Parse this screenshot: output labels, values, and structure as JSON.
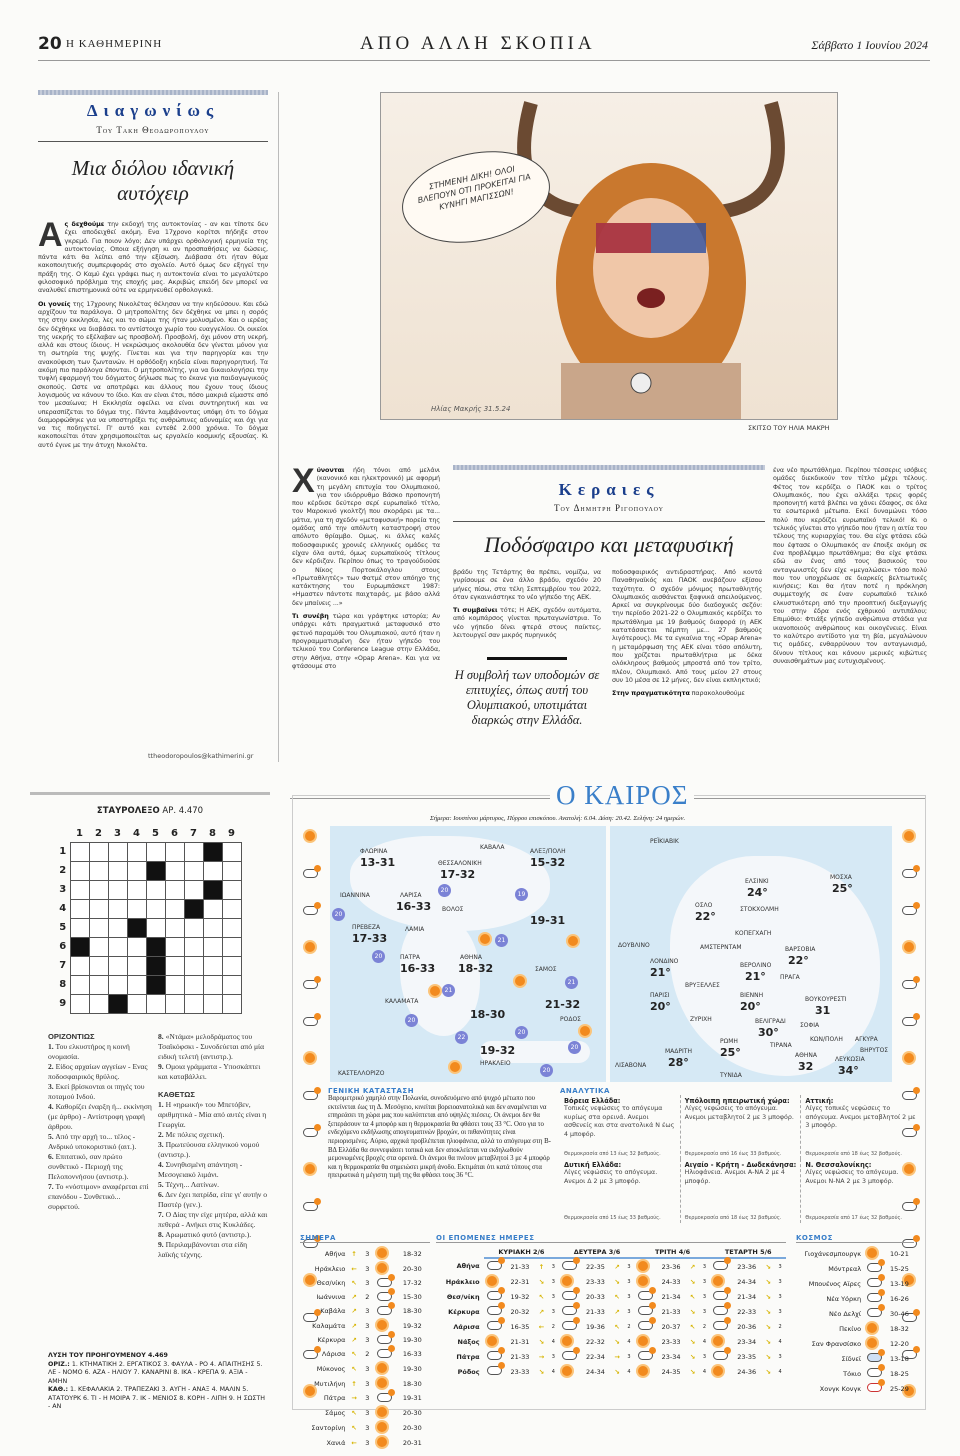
{
  "header": {
    "page": "20",
    "paper": "Η ΚΑΘΗΜΕΡΙΝΗ",
    "section": "ΑΠΟ ΑΛΛΗ ΣΚΟΠΙΑ",
    "date": "Σάββατο 1 Ιουνίου 2024"
  },
  "column1": {
    "kicker": "Διαγωνίως",
    "byline": "Του Τακη Θεοδωροπουλου",
    "headline": "Μια διόλου ιδανική αυτόχειρ",
    "dropcap": "Α",
    "lead_bold": "ς δεχθούμε",
    "p1": " την εκδοχή της αυτοκτονίας - αν και τίποτε δεν έχει αποδειχθεί ακόμη. Ενα 17χρονο κορίτσι πήδηξε στον γκρεμό. Για ποιον λόγο; Δεν υπάρχει ορθολογική ερμηνεία της αυτοκτονίας. Οποια εξήγηση κι αν προσπαθήσεις να δώσεις, πάντα κάτι θα λείπει από την εξίσωση. Διάβασα ότι ήταν θύμα κακοποιητικής συμπεριφοράς στο σχολείο. Αυτό όμως δεν εξηγεί την πράξη της. Ο Καμύ έχει γράψει πως η αυτοκτονία είναι το μεγαλύτερο φιλοσοφικό πρόβλημα της εποχής μας. Ακριβώς επειδή δεν μπορεί να αναλυθεί επιστημονικά ούτε να ερμηνευθεί ορθολογικά.",
    "p2_bold": "Οι γονείς",
    "p2": " της 17χρονης Νικολέτας θέλησαν να την κηδεύσουν. Και εδώ αρχίζουν τα παράλογα. Ο μητροπολίτης δεν δέχθηκε να μπει η σορός της στην εκκλησία, λες και το σώμα της ήταν μολυσμένο. Και ο ιερέας δεν δέχθηκε να διαβάσει το αντίστοιχο χωρίο του ευαγγελίου. Οι οικείοι της νεκρής το εξέλαβαν ως προσβολή. Προσβολή, όχι μόνον στη νεκρή, αλλά και στους ίδιους. Η νεκρώσιμος ακολουθία δεν γίνεται μόνον για τη σωτηρία της ψυχής. Γίνεται και για την παρηγορία και την ανακούφιση των ζωντανών. Η ορθόδοξη κηδεία είναι παρηγορητική. Τα ακόμη πιο παράλογα έπονται. Ο μητροπολίτης, για να δικαιολογήσει την τυφλή εφαρμογή του δόγματος δήλωσε πως το έκανε για παιδαγωγικούς σκοπούς. Ωστε να αποτρέψει και άλλους που έχουν τους ίδιους λογισμούς να κάνουν το ίδιο. Και αν είναι έτσι, πόσο μακριά είμαστε από τον μεσαίωνα; Η Εκκλησία οφείλει να είναι συντηρητική και να υπερασπίζεται το δόγμα της. Πάντα λαμβάνοντας υπόψη ότι το δόγμα διαμορφώθηκε για να υποστηρίξει τις ανθρώπινες αδυναμίες και όχι για να τις ποδηγετεί. Π' αυτό και εντεθέ 2.000 χρόνια. Το δόγμα κακοποιείται όταν χρησιμοποιείται ως εργαλείο κοσμικής εξουσίας. Κι αυτό έγινε με την άτυχη Νικολέτα.",
    "email": "ttheodoropoulos@kathimerini.gr"
  },
  "cartoon": {
    "speech": "ΣΤΗΜΕΝΗ ΔΙΚΗ! ΟΛΟΙ ΒΛΕΠΟΥΝ ΟΤΙ ΠΡΟΚΕΙΤΑΙ ΓΙΑ ΚΥΝΗΓΙ ΜΑΓΙΣΣΩΝ!",
    "signature": "Ηλίας Μακρής 31.5.24",
    "caption": "ΣΚΙΤΣΟ ΤΟΥ ΗΛΙΑ ΜΑΚΡΗ"
  },
  "column2": {
    "kicker": "Κεραιες",
    "byline": "Του Δημητρη Ριγοπουλου",
    "headline": "Ποδόσφαιρο και μεταφυσική",
    "dropcap": "Χ",
    "lead_bold": "ύνονται",
    "p1": " ήδη τόνοι από μελάνι (κανονικό και ηλεκτρονικό) με αφορμή τη μεγάλη επιτυχία του Ολυμπιακού, για τον ιδιόρρυθμο Βάσκο προπονητή που κέρδισε δεύτερο σερί ευρωπαϊκό τίτλο, τον Μαροκινό γκολτζή που σκοράρει με τα... μάτια, για τη σχεδόν «μεταφυσική» πορεία της ομάδας από την απόλυτη καταστροφή στον απόλυτο θρίαμβο. Ομως, κι άλλες καλές ποδοσφαιρικές χρονιές ελληνικές ομάδες τα είχαν όλα αυτά, όμως ευρωπαϊκούς τίτλους δεν κέρδιζαν. Περίπου όπως το τραγούδιούσε ο Νίκος Πορτοκάλογλου στους «Πρωταθλητές» των Φατμέ στον απόηχο της κατάκτησης του Ευρωμπάσκετ 1987: «Ημαστεν πάντοτε παιχταράς, με βάσο αλλά δεν μπαίνεις ...»",
    "p2_bold": "Τι συνέβη",
    "p2": " τώρα και γράφτηκε ιστορία; Αν υπάρχει κάτι πραγματικά μεταφυσικό στο φετινό παραμύθι του Ολυμπιακού, αυτό ήταν η προγραμματισμένη δεν ήταν γήπεδο του τελικού του Conference League στην Ελλάδα, στην Αθήνα, στην «Opap Arena». Και για να φτάσουμε στο",
    "p3": "βράδυ της Τετάρτης θα πρέπει, νομίζω, να γυρίσουμε σε ένα άλλο βράδυ, σχεδόν 20 μήνες πίσω, στα τέλη Σεπτεμβρίου του 2022, όταν εγκαινιάστηκε το νέο γήπεδο της ΑΕΚ.",
    "p4_bold": "Τι συμβαίνει",
    "p4": " τότε; Η ΑΕΚ, σχεδόν αυτόματα, από κομπάρσος γίνεται πρωταγωνίστρια. Το νέο γήπεδο δίνει φτερά στους παίκτες, λειτουργεί σαν μικρός πυρηνικός",
    "quote": "Η συμβολή των υποδομών σε επιτυχίες, όπως αυτή του Ολυμπιακού, υποτιμάται διαρκώς στην Ελλάδα.",
    "p5": "ποδοσφαιρικός αντιδραστήρας. Από κοντά Παναθηναϊκός και ΠΑΟΚ ανεβάζουν εξίσου ταχύτητα. Ο σχεδόν μόνιμος πρωταθλητής Ολυμπιακός αισθάνεται ξαφνικά απειλούμενος. Αρκεί να συγκρίνουμε δύο διαδοχικές σεζόν: την περίοδο 2021-22 ο Ολυμπιακός κερδίζει το πρωτάθλημα με 19 βαθμούς διαφορά (η ΑΕΚ κατατάσσεται πέμπτη με... 27 βαθμούς λιγότερους). Με τα εγκαίνια της «Opap Arena» η μεταμόρφωση της ΑΕΚ είναι τόσο απόλυτη, που χρίζεται πρωταθλήτρια με δέκα ολόκληρους βαθμούς μπροστά από τον τρίτο, πλέον, Ολυμπιακό. Από τους μείον 27 στους συν 10 μέσα σε 12 μήνες, δεν είναι εκπληκτικό;",
    "p6_bold": "Στην πραγματικότητα",
    "p6": " παρακολουθούμε",
    "p7": "ένα νέο πρωτάθλημα. Περίπου τέσσερις ισόβιες ομάδες διεκδικούν τον τίτλο μέχρι τέλους. Φέτος τον κερδίζει ο ΠΑΟΚ και ο τρίτος Ολυμπιακός, που έχει αλλάξει τρεις φορές προπονητή κατά βλέπει να χάνει έδαφος, σε όλα τα εσωτερικά μέτωπα. Εκεί δυναμώνει τόσο πολύ που κερδίζει ευρωπαϊκό τελικό! Κι ο τελικός γίνεται στο γήπεδο που ήταν η αιτία του τέλους της κυριαρχίας του. Θα είχε φτάσει εδώ που έφτασε ο Ολυμπιακός αν έποιξε ακόμη σε ένα προβλέψιμο πρωτάθλημα; Θα είχε φτάσει εδώ αν ένας από τους βασικούς του ανταγωνιστές δεν είχε «μεγαλώσει» τόσο πολύ που τον υποχρέωσε σε διαρκείς βελτιωτικές κινήσεις; Και θα ήταν ποτέ η πρόκληση συμμετοχής σε έναν ευρωπαϊκό τελικό ελκυστικότερη από την προοπτική διεξαγωγής του στην έδρα ενός εχθρικού αντιπάλου; Επιμύθιο: Φτιάξε γήπεδο ανθρώπινα στάδια για ικανοποιούς ανθρώπους και οικογένειες. Είναι το καλύτερο αντίδοτο για τη βία, μεγαλώνουν τις ομάδες, ενθαρρύνουν τον ανταγωνισμό, δίνουν τίτλους και κάνουν μερικές κιβώτιες συναισθημάτων μας ευτυχισμένους."
  },
  "crossword": {
    "title_bold": "ΣΤΑΥΡΟΛΕΞΟ",
    "title": "ΑΡ. 4.470",
    "cols": [
      "1",
      "2",
      "3",
      "4",
      "5",
      "6",
      "7",
      "8",
      "9"
    ],
    "rows": [
      "1",
      "2",
      "3",
      "4",
      "5",
      "6",
      "7",
      "8",
      "9"
    ],
    "black_cells": [
      [
        1,
        8
      ],
      [
        2,
        5
      ],
      [
        3,
        8
      ],
      [
        4,
        7
      ],
      [
        5,
        4
      ],
      [
        6,
        1
      ],
      [
        6,
        5
      ],
      [
        7,
        5
      ],
      [
        8,
        5
      ],
      [
        9,
        3
      ]
    ],
    "across_title": "ΟΡΙΖΟΝΤΙΩΣ",
    "across": [
      {
        "n": "1.",
        "t": "Του ελκυστήρος η κοινή ονομασία."
      },
      {
        "n": "2.",
        "t": "Είδος αρχαίων αγγείων - Ενας ποδοσφαιρικός θρύλος."
      },
      {
        "n": "3.",
        "t": "Εκεί βρίσκονται οι πηγές του ποταμού Ινδού."
      },
      {
        "n": "4.",
        "t": "Καθορίζει έναρξη ή... εκκίνηση (με άρθρο) - Αντίστροφη γραφή άρθρου."
      },
      {
        "n": "5.",
        "t": "Από την αρχή το... τέλος - Ανδρικό υποκοριστικό (αιτ.)."
      },
      {
        "n": "6.",
        "t": "Επιτατικό, σαν πρώτο συνθετικό - Περιοχή της Πελοποννήσου (αντιστρ.)."
      },
      {
        "n": "7.",
        "t": "Το «νόστιμον» αναφέρεται επί επανόδου - Συνθετικό... συρφετού."
      },
      {
        "n": "8.",
        "t": "«Ντάμα» μελοδράματος του Τσαϊκόφσκι - Συνοδεύεται από μία ειδική τελετή (αντιστρ.)."
      },
      {
        "n": "9.",
        "t": "Ομοια γράμματα - Υποσκάπτει και καταβάλλει."
      }
    ],
    "down_title": "ΚΑΘΕΤΩΣ",
    "down": [
      {
        "n": "1.",
        "t": "Η «ηρωική» του Μπετόβεν, αριθμητικά - Μία από αυτές είναι η Γεωργία."
      },
      {
        "n": "2.",
        "t": "Με πόλεις σχετική."
      },
      {
        "n": "3.",
        "t": "Πρωτεύουσα ελληνικού νομού (αντιστρ.)."
      },
      {
        "n": "4.",
        "t": "Συνηθισμένη απάντηση - Μεσογειακό λιμάνι."
      },
      {
        "n": "5.",
        "t": "Τέχνη... Λατίνων."
      },
      {
        "n": "6.",
        "t": "Δεν έχει πατρίδα, είπε γι' αυτήν ο Παστέρ (γεν.)."
      },
      {
        "n": "7.",
        "t": "Ο Δίας την είχε μητέρα, αλλά και πεθερά - Ανήκει στις Κυκλάδες."
      },
      {
        "n": "8.",
        "t": "Αρωματικό φυτό (αντιστρ.)."
      },
      {
        "n": "9.",
        "t": "Περιλαμβάνονται στα είδη λαϊκής τέχνης."
      }
    ],
    "solution_title": "ΛΥΣΗ ΤΟΥ ΠΡΟΗΓΟΥΜΕΝΟΥ 4.469",
    "solution_across_label": "ΟΡΙΖ.:",
    "solution_across": "1. ΚΤΗΜΑΤΙΚΗ 2. ΕΡΓΑΤΙΚΟΣ 3. ΦΑΥΛΑ - ΡΟ 4. ΑΠΑΙΤΗΣΗΣ 5. ΛΕ - ΝΟΜΟ 6. ΑΖΑ - ΗΛΙΟΥ 7. ΚΑΝΑΡΙΝΙ 8. ΙΚΑ - ΚΡΕΠΑ 9. ΑΞΙΑ - ΑΜΗΝ",
    "solution_down_label": "ΚΑΘ.:",
    "solution_down": "1. ΚΕΦΑΛΑΚΙΑ 2. ΤΡΑΠΕΖΑΚΙ 3. ΑΥΓΗ - ΑΝΑΞ 4. ΜΑΛΙΝ 5. ΑΤΑΤΟΥΡΚ 6. ΤΙ - Η ΜΟΙΡΑ 7. ΙΚ - ΜΕΝΙΟΣ 8. ΚΟΡΗ - ΛΙΠΗ 9. Η ΣΩΣΤΗ - ΑΝ"
  },
  "weather": {
    "title": "Ο ΚΑΙΡΟΣ",
    "today_note": "Σήμερα: Ιουστίνου μάρτυρος, Πύρρου επισκόπου. Ανατολή: 6.04. Δύση: 20.42. Σελήνη: 24 ημερών.",
    "colors": {
      "accent": "#3a7fc9",
      "sun": "#f28a1e",
      "sea": "#d6e9f5"
    },
    "greece_map": {
      "cities": [
        "ΦΛΩΡΙΝΑ",
        "ΘΕΣΣΑΛΟΝΙΚΗ",
        "ΚΑΒΑΛΑ",
        "ΑΛΕΞ/ΠΟΛΗ",
        "ΙΩΑΝΝΙΝΑ",
        "ΛΑΡΙΣΑ",
        "ΒΟΛΟΣ",
        "ΠΡΕΒΕΖΑ",
        "ΛΑΜΙΑ",
        "ΠΑΤΡΑ",
        "ΑΘΗΝΑ",
        "ΣΑΜΟΣ",
        "ΚΑΛΑΜΑΤΑ",
        "ΡΟΔΟΣ",
        "ΗΡΑΚΛΕΙΟ",
        "ΚΑΣΤΕΛΛΟΡΙΖΟ"
      ],
      "temps": [
        "13-31",
        "17-32",
        "15-32",
        "16-33",
        "17-33",
        "19-31",
        "16-33",
        "18-32",
        "18-30",
        "21-32",
        "19-32"
      ],
      "sea_temps": [
        "20",
        "19",
        "20",
        "21",
        "20",
        "21",
        "21",
        "20",
        "20",
        "22",
        "20",
        "20"
      ]
    },
    "europe_map": {
      "cities": [
        "ΡΕΪΚΙΑΒΙΚ",
        "ΕΛΣΙΝΚΙ",
        "ΜΟΣΧΑ",
        "ΟΣΛΟ",
        "ΣΤΟΚΧΟΛΜΗ",
        "ΚΟΠΕΓΧΑΓΗ",
        "ΔΟΥΒΛΙΝΟ",
        "ΑΜΣΤΕΡΝΤΑΜ",
        "ΒΑΡΣΟΒΙΑ",
        "ΛΟΝΔΙΝΟ",
        "ΒΕΡΟΛΙΝΟ",
        "ΒΡΥΞΕΛΛΕΣ",
        "ΠΡΑΓΑ",
        "ΠΑΡΙΣΙ",
        "ΒΙΕΝΝΗ",
        "ΒΟΥΚΟΥΡΕΣΤΙ",
        "ΖΥΡΙΧΗ",
        "ΒΕΛΙΓΡΑΔΙ",
        "ΣΟΦΙΑ",
        "ΡΩΜΗ",
        "ΤΙΡΑΝΑ",
        "ΚΩΝ/ΠΟΛΗ",
        "ΑΓΚΥΡΑ",
        "ΜΑΔΡΙΤΗ",
        "ΛΙΣΑΒΟΝΑ",
        "ΑΘΗΝΑ",
        "ΛΕΥΚΩΣΙΑ",
        "ΒΗΡΥΤΟΣ",
        "ΤΥΝΙΔΑ"
      ],
      "temps": [
        "24°",
        "25°",
        "22°",
        "22°",
        "21°",
        "21°",
        "20°",
        "20°",
        "31",
        "30°",
        "25°",
        "28°",
        "32",
        "34°"
      ]
    },
    "general_title": "ΓΕΝΙΚΗ ΚΑΤΑΣΤΑΣΗ",
    "general_text": "Βαρομετρικό χαμηλό στην Πολωνία, συνοδευόμενο από ψυχρό μέτωπο που εκτείνεται έως τη Δ. Μεσόγειο, κινείται βορειοανατολικά και δεν αναμένεται να επηρεάσει τη χώρα μας που καλύπτεται από υψηλές πιέσεις. Οι άνεμοι δεν θα ξεπεράσουν τα 4 μποφόρ και η θερμοκρασία θα φθάσει τους 33 °C. Οσο για το ενδεχόμενο εκδήλωσης απογευματινών βροχών, οι πιθανότητες είναι περιορισμένες. Αύριο, αρχικά προβλέπεται ηλιοφάνεια, αλλά το απόγευμα στη Β-ΒΔ Ελλάδα θα συννεφιάσει τοπικά και δεν αποκλείεται να εκδηλωθούν μεμονωμένες βροχές στα ορεινά. Οι άνεμοι θα πνέουν μεταβλητοί 3 με 4 μποφόρ και η θερμοκρασία θα σημειώσει μικρή άνοδο. Εκτιμάται ότι κατά τόπους στα ηπειρωτικά η μέγιστη τιμή της θα φθάσει τους 36 °C.",
    "regional_title": "ΑΝΑΛΥΤΙΚΑ",
    "regions": [
      {
        "name": "Βόρεια Ελλάδα:",
        "text": "Τοπικές νεφώσεις το απόγευμα κυρίως στα ορεινά. Ανεμοι ασθενείς και στα ανατολικά Ν έως 4 μποφόρ.",
        "temp": "Θερμοκρασία από 13 έως 32 βαθμούς."
      },
      {
        "name": "Υπόλοιπη ηπειρωτική χώρα:",
        "text": "Λίγες νεφώσεις το απόγευμα. Ανεμοι μεταβλητοί 2 με 3 μποφόρ.",
        "temp": "Θερμοκρασία από 16 έως 33 βαθμούς."
      },
      {
        "name": "Αττική:",
        "text": "Λίγες τοπικές νεφώσεις το απόγευμα. Ανεμοι μεταβλητοί 2 με 3 μποφόρ.",
        "temp": "Θερμοκρασία από 18 έως 32 βαθμούς."
      },
      {
        "name": "Δυτική Ελλάδα:",
        "text": "Λίγες νεφώσεις το απόγευμα. Ανεμοι Δ 2 με 3 μποφόρ.",
        "temp": "Θερμοκρασία από 15 έως 33 βαθμούς."
      },
      {
        "name": "Αιγαίο - Κρήτη - Δωδεκάνησα:",
        "text": "Ηλιοφάνεια. Ανεμοι Α-ΝΑ 2 με 4 μποφόρ.",
        "temp": "Θερμοκρασία από 18 έως 32 βαθμούς."
      },
      {
        "name": "Ν. Θεσσαλονίκης:",
        "text": "Λίγες νεφώσεις το απόγευμα. Ανεμοι Ν-ΝΑ 2 με 3 μποφόρ.",
        "temp": "Θερμοκρασία από 17 έως 32 βαθμούς."
      }
    ],
    "today_title": "ΣΗΜΕΡΑ",
    "today": [
      {
        "city": "Αθήνα",
        "wind": "↑",
        "bf": "3",
        "icon": "sun",
        "t": "18-32"
      },
      {
        "city": "Ηράκλειο",
        "wind": "←",
        "bf": "3",
        "icon": "sun",
        "t": "20-30"
      },
      {
        "city": "Θεσ/νίκη",
        "wind": "↖",
        "bf": "3",
        "icon": "cloud",
        "t": "17-32"
      },
      {
        "city": "Ιωάννινα",
        "wind": "↗",
        "bf": "2",
        "icon": "cloud",
        "t": "15-30"
      },
      {
        "city": "Καβάλα",
        "wind": "↗",
        "bf": "3",
        "icon": "cloud",
        "t": "18-30"
      },
      {
        "city": "Καλαμάτα",
        "wind": "↗",
        "bf": "3",
        "icon": "sun",
        "t": "19-32"
      },
      {
        "city": "Κέρκυρα",
        "wind": "↗",
        "bf": "3",
        "icon": "cloud",
        "t": "19-30"
      },
      {
        "city": "Λάρισα",
        "wind": "↖",
        "bf": "2",
        "icon": "cloud",
        "t": "16-33"
      },
      {
        "city": "Μύκονος",
        "wind": "↖",
        "bf": "3",
        "icon": "sun",
        "t": "19-30"
      },
      {
        "city": "Μυτιλήνη",
        "wind": "↑",
        "bf": "3",
        "icon": "sun",
        "t": "18-30"
      },
      {
        "city": "Πάτρα",
        "wind": "→",
        "bf": "3",
        "icon": "cloud",
        "t": "19-31"
      },
      {
        "city": "Σάμος",
        "wind": "↖",
        "bf": "3",
        "icon": "sun",
        "t": "20-30"
      },
      {
        "city": "Σαντορίνη",
        "wind": "↖",
        "bf": "3",
        "icon": "sun",
        "t": "20-30"
      },
      {
        "city": "Χανιά",
        "wind": "←",
        "bf": "3",
        "icon": "sun",
        "t": "20-31"
      }
    ],
    "next_title": "ΟΙ ΕΠΟΜΕΝΕΣ ΗΜΕΡΕΣ",
    "next_days": [
      "ΚΥΡΙΑΚΗ 2/6",
      "ΔΕΥΤΕΡΑ 3/6",
      "ΤΡΙΤΗ 4/6",
      "ΤΕΤΑΡΤΗ 5/6"
    ],
    "next": [
      {
        "city": "Αθήνα",
        "d": [
          [
            "cloud",
            "21-33",
            "↑",
            "3"
          ],
          [
            "cloud",
            "22-35",
            "↗",
            "3"
          ],
          [
            "sun",
            "23-36",
            "↗",
            "3"
          ],
          [
            "cloud",
            "23-36",
            "↘",
            "3"
          ]
        ]
      },
      {
        "city": "Ηράκλειο",
        "d": [
          [
            "sun",
            "22-31",
            "↘",
            "3"
          ],
          [
            "sun",
            "23-33",
            "↘",
            "3"
          ],
          [
            "sun",
            "24-33",
            "↘",
            "3"
          ],
          [
            "sun",
            "24-34",
            "↘",
            "3"
          ]
        ]
      },
      {
        "city": "Θεσ/νίκη",
        "d": [
          [
            "cloud",
            "19-32",
            "↖",
            "3"
          ],
          [
            "cloud",
            "20-33",
            "↖",
            "3"
          ],
          [
            "cloud",
            "21-34",
            "↖",
            "3"
          ],
          [
            "cloud",
            "21-34",
            "↘",
            "3"
          ]
        ]
      },
      {
        "city": "Κέρκυρα",
        "d": [
          [
            "cloud",
            "20-32",
            "↗",
            "3"
          ],
          [
            "cloud",
            "21-33",
            "↗",
            "3"
          ],
          [
            "cloud",
            "21-33",
            "↘",
            "3"
          ],
          [
            "cloud",
            "22-33",
            "↘",
            "3"
          ]
        ]
      },
      {
        "city": "Λάρισα",
        "d": [
          [
            "cloud",
            "16-35",
            "←",
            "2"
          ],
          [
            "cloud",
            "19-36",
            "↖",
            "2"
          ],
          [
            "cloud",
            "20-37",
            "↖",
            "2"
          ],
          [
            "cloud",
            "20-36",
            "↘",
            "2"
          ]
        ]
      },
      {
        "city": "Νάξος",
        "d": [
          [
            "sun",
            "21-31",
            "↘",
            "4"
          ],
          [
            "sun",
            "22-32",
            "↘",
            "4"
          ],
          [
            "sun",
            "23-33",
            "↘",
            "4"
          ],
          [
            "sun",
            "23-34",
            "↘",
            "4"
          ]
        ]
      },
      {
        "city": "Πάτρα",
        "d": [
          [
            "cloud",
            "21-33",
            "→",
            "3"
          ],
          [
            "cloud",
            "22-34",
            "→",
            "3"
          ],
          [
            "cloud",
            "23-34",
            "↘",
            "3"
          ],
          [
            "cloud",
            "23-35",
            "↘",
            "3"
          ]
        ]
      },
      {
        "city": "Ρόδος",
        "d": [
          [
            "cloud",
            "23-33",
            "↘",
            "4"
          ],
          [
            "sun",
            "24-34",
            "↘",
            "4"
          ],
          [
            "sun",
            "24-35",
            "↘",
            "4"
          ],
          [
            "sun",
            "24-36",
            "↘",
            "4"
          ]
        ]
      }
    ],
    "world_title": "ΚΟΣΜΟΣ",
    "world": [
      {
        "city": "Γιοχάνεσμπουργκ",
        "icon": "sun",
        "t": "10-21"
      },
      {
        "city": "Μόντρεαλ",
        "icon": "cloud",
        "t": "15-25"
      },
      {
        "city": "Μπουένος Αϊρες",
        "icon": "cloud",
        "t": "13-19"
      },
      {
        "city": "Νέα Υόρκη",
        "icon": "cloud",
        "t": "16-26"
      },
      {
        "city": "Νέο Δελχί",
        "icon": "cloud",
        "t": "30-46"
      },
      {
        "city": "Πεκίνο",
        "icon": "sun",
        "t": "18-32"
      },
      {
        "city": "Σαν Φρανσίσκο",
        "icon": "sun",
        "t": "12-20"
      },
      {
        "city": "Σίδνεϊ",
        "icon": "rain",
        "t": "13-18"
      },
      {
        "city": "Τόκιο",
        "icon": "cloud",
        "t": "18-25"
      },
      {
        "city": "Χονγκ Κονγκ",
        "icon": "storm",
        "t": "25-29"
      }
    ]
  }
}
